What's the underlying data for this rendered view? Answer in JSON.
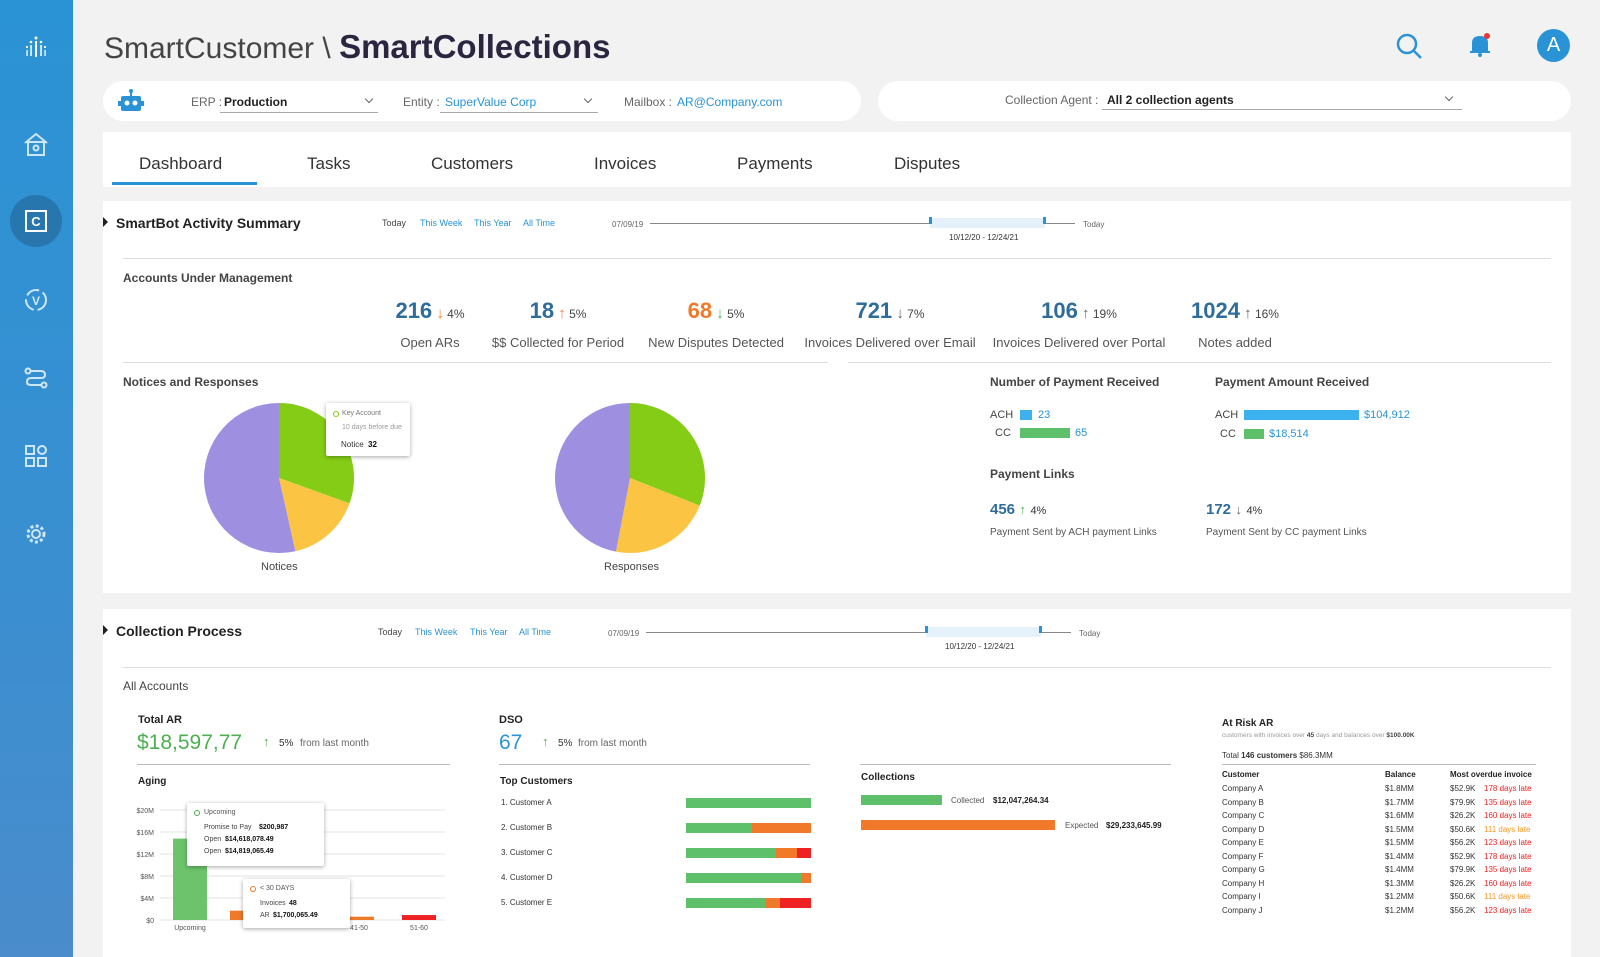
{
  "header": {
    "app": "SmartCustomer \\ ",
    "module": "SmartCollections",
    "avatar": "A"
  },
  "sidebar": {
    "items": [
      "logo-icon",
      "home-icon",
      "collections-icon",
      "validation-icon",
      "workflow-icon",
      "apps-icon",
      "gear-icon"
    ],
    "active": "collections-icon"
  },
  "filters": {
    "erp_label": "ERP :",
    "erp_value": "Production",
    "entity_label": "Entity :",
    "entity_value": "SuperValue Corp",
    "mailbox_label": "Mailbox :",
    "mailbox_value": "AR@Company.com",
    "agent_label": "Collection Agent :",
    "agent_value": "All 2 collection agents"
  },
  "tabs": [
    "Dashboard",
    "Tasks",
    "Customers",
    "Invoices",
    "Payments",
    "Disputes"
  ],
  "activity": {
    "title": "SmartBot Activity Summary",
    "ranges": [
      "Today",
      "This Week",
      "This Year",
      "All Time"
    ],
    "timeline_start": "07/09/19",
    "timeline_end": "Today",
    "timeline_range": "10/12/20 - 12/24/21",
    "aum_title": "Accounts Under Management",
    "kpis": [
      {
        "value": "216",
        "dir": "↓",
        "pct": "4%",
        "label": "Open ARs",
        "color": "#f07a2a"
      },
      {
        "value": "18",
        "dir": "↑",
        "pct": "5%",
        "label": "$$ Collected for Period",
        "color": "#f07a2a"
      },
      {
        "value": "68",
        "dir": "↓",
        "pct": "5%",
        "label": "New Disputes Detected",
        "color": "#4cb050"
      },
      {
        "value": "721",
        "dir": "↓",
        "pct": "7%",
        "label": "Invoices Delivered over Email",
        "color": "#666"
      },
      {
        "value": "106",
        "dir": "↑",
        "pct": "19%",
        "label": "Invoices Delivered over Portal",
        "color": "#666"
      },
      {
        "value": "1024",
        "dir": "↑",
        "pct": "16%",
        "label": "Notes added",
        "color": "#666"
      }
    ],
    "notices_title": "Notices and Responses",
    "pie_notices_label": "Notices",
    "pie_responses_label": "Responses",
    "tooltip": {
      "line1": "Key Account",
      "line2": "10 days before due",
      "label": "Notice",
      "value": "32"
    },
    "payments_received_title": "Number of Payment Received",
    "payments_received": [
      {
        "name": "ACH",
        "value": "23"
      },
      {
        "name": "CC",
        "value": "65"
      }
    ],
    "payment_amount_title": "Payment Amount Received",
    "payment_amount": [
      {
        "name": "ACH",
        "value": "$104,912"
      },
      {
        "name": "CC",
        "value": "$18,514"
      }
    ],
    "links_title": "Payment Links",
    "links": [
      {
        "value": "456",
        "dir": "↑",
        "pct": "4%",
        "label": "Payment Sent by ACH payment Links"
      },
      {
        "value": "172",
        "dir": "↓",
        "pct": "4%",
        "label": "Payment Sent by CC payment Links"
      }
    ]
  },
  "collection": {
    "title": "Collection Process",
    "ranges": [
      "Today",
      "This Week",
      "This Year",
      "All Time"
    ],
    "timeline_start": "07/09/19",
    "timeline_end": "Today",
    "timeline_range": "10/12/20 - 12/24/21",
    "all_accounts": "All Accounts",
    "total_ar_label": "Total AR",
    "total_ar": "$18,597,77",
    "total_ar_pct": "5%",
    "total_ar_note": "from last month",
    "dso_label": "DSO",
    "dso": "67",
    "dso_pct": "5%",
    "dso_note": "from last month",
    "aging_title": "Aging",
    "aging_yticks": [
      "$20M",
      "$16M",
      "$12M",
      "$8M",
      "$4M",
      "$0"
    ],
    "aging_xticks": [
      "Upcoming",
      "41-50",
      "51-60"
    ],
    "aging_tip1": {
      "title": "Upcoming",
      "r1": "Promise to Pay",
      "v1": "$200,987",
      "r2": "Open",
      "v2": "$14,618,078.49",
      "r3": "Open",
      "v3": "$14,819,065.49"
    },
    "aging_tip2": {
      "title": "< 30 DAYS",
      "r1": "Invoices",
      "v1": "48",
      "r2": "AR",
      "v2": "$1,700,065.49"
    },
    "top_title": "Top Customers",
    "top_customers": [
      "1. Customer A",
      "2. Customer B",
      "3. Customer C",
      "4. Customer D",
      "5. Customer E"
    ],
    "collections_title": "Collections",
    "collected_label": "Collected",
    "collected_value": "$12,047,264.34",
    "expected_label": "Expected",
    "expected_value": "$29,233,645.99",
    "risk_title": "At Risk AR",
    "risk_sub_a": "customers with invoices over",
    "risk_sub_days": "45",
    "risk_sub_b": "days and balances over",
    "risk_sub_amt": "$100.00K",
    "risk_total_label": "Total",
    "risk_total_customers": "146 customers",
    "risk_total_amount": "$86.3MM",
    "risk_headers": [
      "Customer",
      "Balance",
      "Most overdue invoice"
    ],
    "risk_rows": [
      [
        "Company A",
        "$1.8MM",
        "$52.9K",
        "178 days late"
      ],
      [
        "Company B",
        "$1.7MM",
        "$79.9K",
        "135 days late"
      ],
      [
        "Company C",
        "$1.6MM",
        "$26.2K",
        "160 days late"
      ],
      [
        "Company D",
        "$1.5MM",
        "$50.6K",
        "111 days late"
      ],
      [
        "Company E",
        "$1.5MM",
        "$56.2K",
        "123 days late"
      ],
      [
        "Company F",
        "$1.4MM",
        "$52.9K",
        "178 days late"
      ],
      [
        "Company G",
        "$1.4MM",
        "$79.9K",
        "135 days late"
      ],
      [
        "Company H",
        "$1.3MM",
        "$26.2K",
        "160 days late"
      ],
      [
        "Company I",
        "$1.2MM",
        "$50.6K",
        "111 days late"
      ],
      [
        "Company J",
        "$1.2MM",
        "$56.2K",
        "123 days late"
      ]
    ]
  },
  "colors": {
    "primary": "#2a93d5",
    "green": "#4cb050",
    "orange": "#f07a2a",
    "red": "#e22",
    "purple": "#9f8fe0",
    "lime": "#84cc16",
    "yellow": "#fbc443"
  }
}
